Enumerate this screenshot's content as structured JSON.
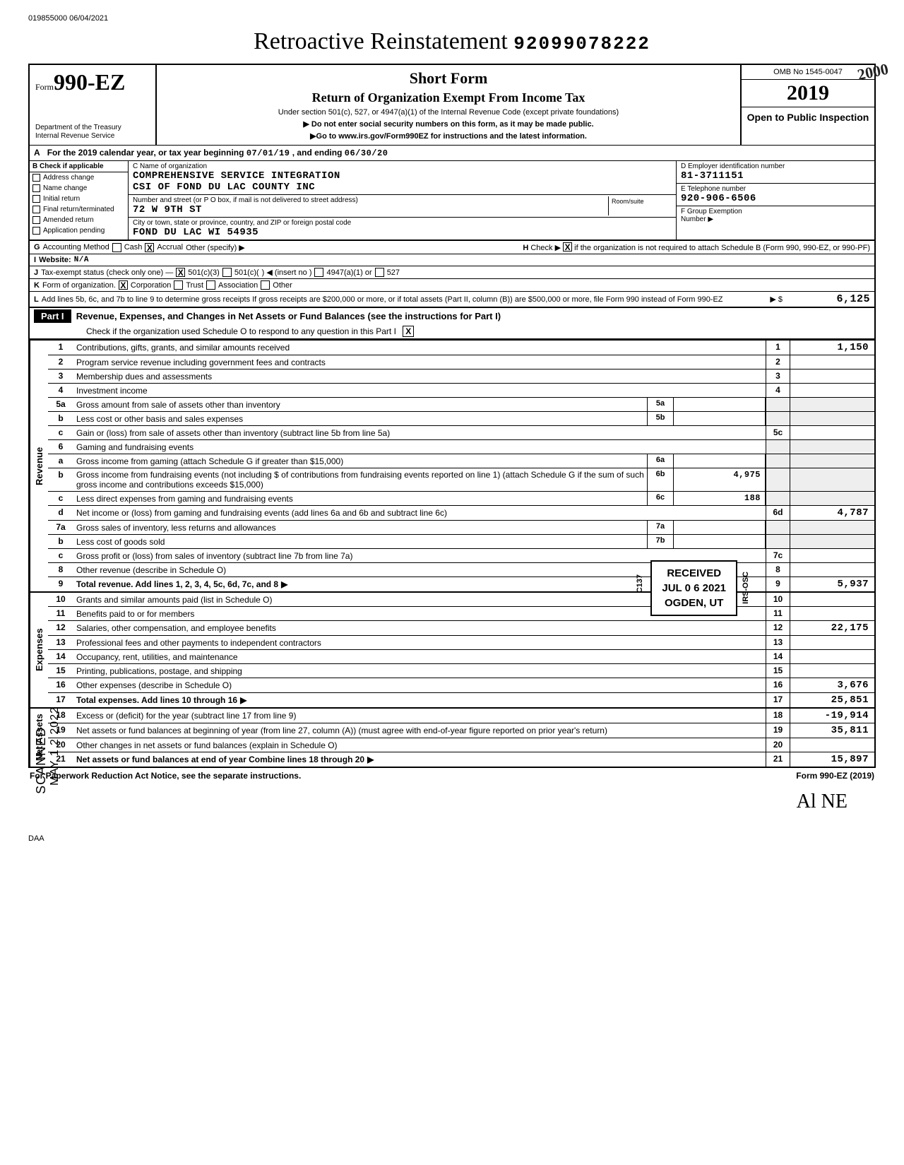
{
  "doc_id_left": "019855000 06/04/2021",
  "main_title": "Retroactive Reinstatement",
  "dln": "92099078222",
  "form": {
    "prefix": "Form",
    "number": "990-EZ"
  },
  "dept_lines": [
    "Department of the Treasury",
    "Internal Revenue Service"
  ],
  "header_mid": {
    "t1": "Short Form",
    "t2": "Return of Organization Exempt From Income Tax",
    "t3": "Under section 501(c), 527, or 4947(a)(1) of the Internal Revenue Code (except private foundations)",
    "t4a": "▶ Do not enter social security numbers on this form, as it may be made public.",
    "t4b": "▶Go to www.irs.gov/Form990EZ for instructions and the latest information."
  },
  "header_right": {
    "omb": "OMB No 1545-0047",
    "year": "2019",
    "open": "Open to Public Inspection",
    "stamp2000": "2000"
  },
  "row_a": {
    "label": "A",
    "text_a": "For the 2019 calendar year, or tax year beginning",
    "begin": "07/01/19",
    "mid": ", and ending",
    "end": "06/30/20"
  },
  "check_b": {
    "head": "B  Check if applicable",
    "items": [
      "Address change",
      "Name change",
      "Initial return",
      "Final return/terminated",
      "Amended return",
      "Application pending"
    ]
  },
  "org": {
    "c_label": "C  Name of organization",
    "name1": "COMPREHENSIVE SERVICE INTEGRATION",
    "name2": "CSI OF FOND DU LAC COUNTY INC",
    "addr_label": "Number and street (or P O  box, if mail is not delivered to street address)",
    "addr": "72 W 9TH ST",
    "room_label": "Room/suite",
    "city_label": "City or town, state or province, country, and ZIP or foreign postal code",
    "city": "FOND DU LAC            WI 54935"
  },
  "de": {
    "d_label": "D  Employer identification number",
    "d_val": "81-3711151",
    "e_label": "E  Telephone number",
    "e_val": "920-906-6506",
    "f_label": "F  Group Exemption",
    "f_label2": "Number  ▶"
  },
  "rows": {
    "g": {
      "label": "G",
      "text": "Accounting Method",
      "cash": "Cash",
      "accrual": "Accrual",
      "other": "Other (specify) ▶"
    },
    "h": {
      "label": "H",
      "text": "Check ▶",
      "tail": "if the organization is not required to attach Schedule B (Form 990, 990-EZ, or 990-PF)"
    },
    "i": {
      "label": "I",
      "text": "Website:",
      "val": "N/A"
    },
    "j": {
      "label": "J",
      "text": "Tax-exempt status (check only one) —",
      "a": "501(c)(3)",
      "b": "501(c)(",
      "b2": ")  ◀ (insert no )",
      "c": "4947(a)(1) or",
      "d": "527"
    },
    "k": {
      "label": "K",
      "text": "Form of organization.",
      "a": "Corporation",
      "b": "Trust",
      "c": "Association",
      "d": "Other"
    },
    "l": {
      "label": "L",
      "text": "Add lines 5b, 6c, and 7b to line 9 to determine gross receipts  If gross receipts are $200,000 or more, or if total assets (Part II, column (B)) are $500,000 or more, file Form 990 instead of Form 990-EZ",
      "amount": "6,125",
      "arrow": "▶ $"
    }
  },
  "part1": {
    "tag": "Part I",
    "title": "Revenue, Expenses, and Changes in Net Assets or Fund Balances (see the instructions for Part I)",
    "sub": "Check if the organization used Schedule O to respond to any question in this Part I",
    "x": "X"
  },
  "lines": {
    "1": {
      "n": "1",
      "d": "Contributions, gifts, grants, and similar amounts received",
      "en": "1",
      "ev": "1,150"
    },
    "2": {
      "n": "2",
      "d": "Program service revenue including government fees and contracts",
      "en": "2",
      "ev": ""
    },
    "3": {
      "n": "3",
      "d": "Membership dues and assessments",
      "en": "3",
      "ev": ""
    },
    "4": {
      "n": "4",
      "d": "Investment income",
      "en": "4",
      "ev": ""
    },
    "5a": {
      "n": "5a",
      "d": "Gross amount from sale of assets other than inventory",
      "mn": "5a",
      "mv": ""
    },
    "5b": {
      "n": "b",
      "d": "Less  cost or other basis and sales expenses",
      "mn": "5b",
      "mv": ""
    },
    "5c": {
      "n": "c",
      "d": "Gain or (loss) from sale of assets other than inventory (subtract line 5b from line 5a)",
      "en": "5c",
      "ev": ""
    },
    "6": {
      "n": "6",
      "d": "Gaming and fundraising events"
    },
    "6a": {
      "n": "a",
      "d": "Gross income from gaming (attach Schedule G if greater than $15,000)",
      "mn": "6a",
      "mv": ""
    },
    "6b": {
      "n": "b",
      "d": "Gross income from fundraising events (not including $                     of contributions from fundraising events reported on line 1) (attach Schedule G if the sum of such gross income and contributions exceeds $15,000)",
      "mn": "6b",
      "mv": "4,975"
    },
    "6c": {
      "n": "c",
      "d": "Less  direct expenses from gaming and fundraising events",
      "mn": "6c",
      "mv": "188"
    },
    "6d": {
      "n": "d",
      "d": "Net income or (loss) from gaming and fundraising events (add lines 6a and 6b and subtract line 6c)",
      "en": "6d",
      "ev": "4,787"
    },
    "7a": {
      "n": "7a",
      "d": "Gross sales of inventory, less returns and allowances",
      "mn": "7a",
      "mv": ""
    },
    "7b": {
      "n": "b",
      "d": "Less  cost of goods sold",
      "mn": "7b",
      "mv": ""
    },
    "7c": {
      "n": "c",
      "d": "Gross profit or (loss) from sales of inventory (subtract line 7b from line 7a)",
      "en": "7c",
      "ev": ""
    },
    "8": {
      "n": "8",
      "d": "Other revenue (describe in Schedule O)",
      "en": "8",
      "ev": ""
    },
    "9": {
      "n": "9",
      "d": "Total revenue. Add lines 1, 2, 3, 4, 5c, 6d, 7c, and 8",
      "en": "9",
      "ev": "5,937",
      "bold": true,
      "arrow": true
    },
    "10": {
      "n": "10",
      "d": "Grants and similar amounts paid (list in Schedule O)",
      "en": "10",
      "ev": ""
    },
    "11": {
      "n": "11",
      "d": "Benefits paid to or for members",
      "en": "11",
      "ev": ""
    },
    "12": {
      "n": "12",
      "d": "Salaries, other compensation, and employee benefits",
      "en": "12",
      "ev": "22,175"
    },
    "13": {
      "n": "13",
      "d": "Professional fees and other payments to independent contractors",
      "en": "13",
      "ev": ""
    },
    "14": {
      "n": "14",
      "d": "Occupancy, rent, utilities, and maintenance",
      "en": "14",
      "ev": ""
    },
    "15": {
      "n": "15",
      "d": "Printing, publications, postage, and shipping",
      "en": "15",
      "ev": ""
    },
    "16": {
      "n": "16",
      "d": "Other expenses (describe in Schedule O)",
      "en": "16",
      "ev": "3,676"
    },
    "17": {
      "n": "17",
      "d": "Total expenses. Add lines 10 through 16",
      "en": "17",
      "ev": "25,851",
      "bold": true,
      "arrow": true
    },
    "18": {
      "n": "18",
      "d": "Excess or (deficit) for the year (subtract line 17 from line 9)",
      "en": "18",
      "ev": "-19,914"
    },
    "19": {
      "n": "19",
      "d": "Net assets or fund balances at beginning of year (from line 27, column (A)) (must agree with end-of-year figure reported on prior year's return)",
      "en": "19",
      "ev": "35,811"
    },
    "20": {
      "n": "20",
      "d": "Other changes in net assets or fund balances (explain in Schedule O)",
      "en": "20",
      "ev": ""
    },
    "21": {
      "n": "21",
      "d": "Net assets or fund balances at end of year  Combine lines 18 through 20",
      "en": "21",
      "ev": "15,897",
      "bold": true,
      "arrow": true
    }
  },
  "vlabels": {
    "rev": "Revenue",
    "exp": "Expenses",
    "net": "Net Assets"
  },
  "received": {
    "l1": "RECEIVED",
    "l2": "JUL 0 6 2021",
    "l3": "OGDEN, UT",
    "c137": "C137",
    "irs": "IRS-OSC"
  },
  "left_stamps": {
    "scanned": "SCANNED",
    "date": "MAY 1 2 2022"
  },
  "footer": {
    "left": "For Paperwork Reduction Act Notice, see the separate instructions.",
    "right": "Form 990-EZ (2019)"
  },
  "signature": "Al  NE",
  "daa": "DAA"
}
